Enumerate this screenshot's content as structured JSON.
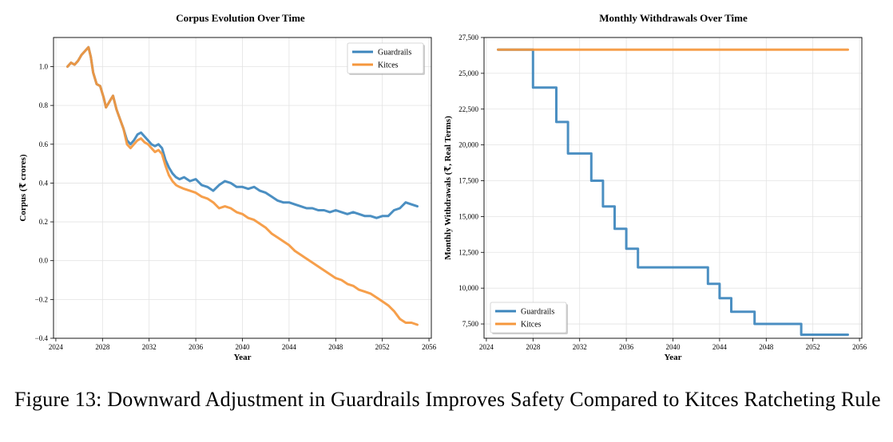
{
  "chart_data": [
    {
      "type": "line",
      "title": "Corpus Evolution Over Time",
      "xlabel": "Year",
      "ylabel": "Corpus (₹ crores)",
      "xlim": [
        2023.8,
        2056.2
      ],
      "ylim": [
        -0.4,
        1.15
      ],
      "xticks": [
        "2024",
        "2028",
        "2032",
        "2036",
        "2040",
        "2044",
        "2048",
        "2052",
        "2056"
      ],
      "yticks": [
        "−0.4",
        "−0.2",
        "0.0",
        "0.2",
        "0.4",
        "0.6",
        "0.8",
        "1.0"
      ],
      "grid": true,
      "legend_position": "top-right",
      "series": [
        {
          "name": "Guardrails",
          "color": "#3c86bd",
          "x": [
            2025.0,
            2025.3,
            2025.6,
            2025.9,
            2026.2,
            2026.5,
            2026.8,
            2027.0,
            2027.2,
            2027.5,
            2027.8,
            2028.1,
            2028.3,
            2028.6,
            2028.9,
            2029.2,
            2029.5,
            2029.8,
            2030.1,
            2030.4,
            2030.7,
            2031.0,
            2031.3,
            2031.6,
            2031.9,
            2032.2,
            2032.5,
            2032.8,
            2033.1,
            2033.4,
            2033.7,
            2034.0,
            2034.3,
            2034.6,
            2035.0,
            2035.5,
            2036.0,
            2036.5,
            2037.0,
            2037.5,
            2038.0,
            2038.5,
            2039.0,
            2039.5,
            2040.0,
            2040.5,
            2041.0,
            2041.5,
            2042.0,
            2042.5,
            2043.0,
            2043.5,
            2044.0,
            2044.5,
            2045.0,
            2045.5,
            2046.0,
            2046.5,
            2047.0,
            2047.5,
            2048.0,
            2048.5,
            2049.0,
            2049.5,
            2050.0,
            2050.5,
            2051.0,
            2051.5,
            2052.0,
            2052.5,
            2053.0,
            2053.5,
            2054.0,
            2054.5,
            2055.0
          ],
          "y": [
            1.0,
            1.02,
            1.01,
            1.03,
            1.06,
            1.08,
            1.1,
            1.05,
            0.97,
            0.91,
            0.9,
            0.84,
            0.79,
            0.82,
            0.85,
            0.78,
            0.73,
            0.68,
            0.62,
            0.6,
            0.62,
            0.65,
            0.66,
            0.64,
            0.62,
            0.6,
            0.59,
            0.6,
            0.58,
            0.52,
            0.48,
            0.45,
            0.43,
            0.42,
            0.43,
            0.41,
            0.42,
            0.39,
            0.38,
            0.36,
            0.39,
            0.41,
            0.4,
            0.38,
            0.38,
            0.37,
            0.38,
            0.36,
            0.35,
            0.33,
            0.31,
            0.3,
            0.3,
            0.29,
            0.28,
            0.27,
            0.27,
            0.26,
            0.26,
            0.25,
            0.26,
            0.25,
            0.24,
            0.25,
            0.24,
            0.23,
            0.23,
            0.22,
            0.23,
            0.23,
            0.26,
            0.27,
            0.3,
            0.29,
            0.28
          ]
        },
        {
          "name": "Kitces",
          "color": "#f5973c",
          "x": [
            2025.0,
            2025.3,
            2025.6,
            2025.9,
            2026.2,
            2026.5,
            2026.8,
            2027.0,
            2027.2,
            2027.5,
            2027.8,
            2028.1,
            2028.3,
            2028.6,
            2028.9,
            2029.2,
            2029.5,
            2029.8,
            2030.1,
            2030.4,
            2030.7,
            2031.0,
            2031.3,
            2031.6,
            2031.9,
            2032.2,
            2032.5,
            2032.8,
            2033.1,
            2033.4,
            2033.7,
            2034.0,
            2034.3,
            2034.6,
            2035.0,
            2035.5,
            2036.0,
            2036.5,
            2037.0,
            2037.5,
            2038.0,
            2038.5,
            2039.0,
            2039.5,
            2040.0,
            2040.5,
            2041.0,
            2041.5,
            2042.0,
            2042.5,
            2043.0,
            2043.5,
            2044.0,
            2044.5,
            2045.0,
            2045.5,
            2046.0,
            2046.5,
            2047.0,
            2047.5,
            2048.0,
            2048.5,
            2049.0,
            2049.5,
            2050.0,
            2050.5,
            2051.0,
            2051.5,
            2052.0,
            2052.5,
            2053.0,
            2053.5,
            2054.0,
            2054.5,
            2055.0
          ],
          "y": [
            1.0,
            1.02,
            1.01,
            1.03,
            1.06,
            1.08,
            1.1,
            1.05,
            0.97,
            0.91,
            0.9,
            0.84,
            0.79,
            0.82,
            0.85,
            0.78,
            0.73,
            0.68,
            0.6,
            0.58,
            0.6,
            0.62,
            0.63,
            0.61,
            0.6,
            0.58,
            0.56,
            0.57,
            0.55,
            0.49,
            0.44,
            0.41,
            0.39,
            0.38,
            0.37,
            0.36,
            0.35,
            0.33,
            0.32,
            0.3,
            0.27,
            0.28,
            0.27,
            0.25,
            0.24,
            0.22,
            0.21,
            0.19,
            0.17,
            0.14,
            0.12,
            0.1,
            0.08,
            0.05,
            0.03,
            0.01,
            -0.01,
            -0.03,
            -0.05,
            -0.07,
            -0.09,
            -0.1,
            -0.12,
            -0.13,
            -0.15,
            -0.16,
            -0.17,
            -0.19,
            -0.21,
            -0.23,
            -0.26,
            -0.3,
            -0.32,
            -0.32,
            -0.33
          ]
        }
      ]
    },
    {
      "type": "line",
      "title": "Monthly Withdrawals Over Time",
      "xlabel": "Year",
      "ylabel": "Monthly Withdrawals (₹, Real Terms)",
      "xlim": [
        2023.8,
        2056.2
      ],
      "ylim": [
        6500,
        27500
      ],
      "xticks": [
        "2024",
        "2028",
        "2032",
        "2036",
        "2040",
        "2044",
        "2048",
        "2052",
        "2056"
      ],
      "yticks": [
        "7,500",
        "10,000",
        "12,500",
        "15,000",
        "17,500",
        "20,000",
        "22,500",
        "25,000",
        "27,500"
      ],
      "grid": true,
      "legend_position": "bottom-left",
      "series": [
        {
          "name": "Guardrails",
          "color": "#3c86bd",
          "x": [
            2025.0,
            2028.0,
            2028.0,
            2030.0,
            2030.0,
            2031.0,
            2031.0,
            2033.0,
            2033.0,
            2034.0,
            2034.0,
            2035.0,
            2035.0,
            2036.0,
            2036.0,
            2037.0,
            2037.0,
            2043.0,
            2043.0,
            2044.0,
            2044.0,
            2045.0,
            2045.0,
            2047.0,
            2047.0,
            2051.0,
            2051.0,
            2055.0
          ],
          "y": [
            26650,
            26650,
            24000,
            24000,
            21600,
            21600,
            19400,
            19400,
            17500,
            17500,
            15700,
            15700,
            14150,
            14150,
            12750,
            12750,
            11450,
            11450,
            10300,
            10300,
            9300,
            9300,
            8350,
            8350,
            7500,
            7500,
            6750,
            6750
          ]
        },
        {
          "name": "Kitces",
          "color": "#f5973c",
          "x": [
            2025.0,
            2055.0
          ],
          "y": [
            26650,
            26650
          ]
        }
      ]
    }
  ],
  "caption": "Figure 13:  Downward Adjustment in Guardrails Improves Safety Compared to Kitces Ratcheting Rule"
}
